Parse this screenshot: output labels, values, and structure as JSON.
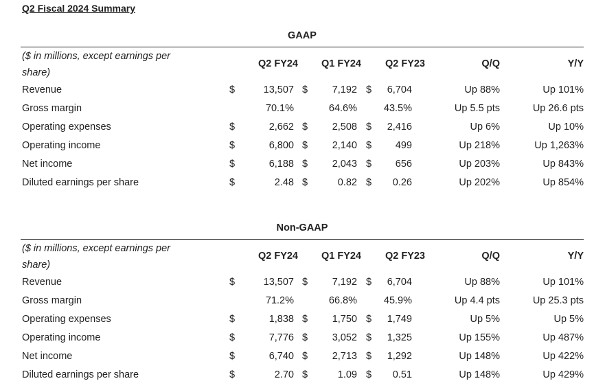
{
  "title": "Q2 Fiscal 2024 Summary",
  "sections": [
    {
      "heading": "GAAP",
      "note": "($ in millions, except earnings per share)",
      "columns": [
        "Q2 FY24",
        "Q1 FY24",
        "Q2 FY23",
        "Q/Q",
        "Y/Y"
      ],
      "rows": [
        {
          "label": "Revenue",
          "d1": "$",
          "v1": "13,507",
          "d2": "$",
          "v2": "7,192",
          "d3": "$",
          "v3": "6,704",
          "qq": "Up 88%",
          "yy": "Up 101%"
        },
        {
          "label": "Gross margin",
          "d1": "",
          "v1": "70.1%",
          "d2": "",
          "v2": "64.6%",
          "d3": "",
          "v3": "43.5%",
          "qq": "Up 5.5 pts",
          "yy": "Up 26.6 pts"
        },
        {
          "label": "Operating expenses",
          "d1": "$",
          "v1": "2,662",
          "d2": "$",
          "v2": "2,508",
          "d3": "$",
          "v3": "2,416",
          "qq": "Up 6%",
          "yy": "Up 10%"
        },
        {
          "label": "Operating income",
          "d1": "$",
          "v1": "6,800",
          "d2": "$",
          "v2": "2,140",
          "d3": "$",
          "v3": "499",
          "qq": "Up 218%",
          "yy": "Up 1,263%"
        },
        {
          "label": "Net income",
          "d1": "$",
          "v1": "6,188",
          "d2": "$",
          "v2": "2,043",
          "d3": "$",
          "v3": "656",
          "qq": "Up 203%",
          "yy": "Up 843%"
        },
        {
          "label": "Diluted earnings per share",
          "d1": "$",
          "v1": "2.48",
          "d2": "$",
          "v2": "0.82",
          "d3": "$",
          "v3": "0.26",
          "qq": "Up 202%",
          "yy": "Up 854%"
        }
      ]
    },
    {
      "heading": "Non-GAAP",
      "note": "($ in millions, except earnings per share)",
      "columns": [
        "Q2 FY24",
        "Q1 FY24",
        "Q2 FY23",
        "Q/Q",
        "Y/Y"
      ],
      "rows": [
        {
          "label": "Revenue",
          "d1": "$",
          "v1": "13,507",
          "d2": "$",
          "v2": "7,192",
          "d3": "$",
          "v3": "6,704",
          "qq": "Up 88%",
          "yy": "Up 101%"
        },
        {
          "label": "Gross margin",
          "d1": "",
          "v1": "71.2%",
          "d2": "",
          "v2": "66.8%",
          "d3": "",
          "v3": "45.9%",
          "qq": "Up 4.4 pts",
          "yy": "Up 25.3 pts"
        },
        {
          "label": "Operating expenses",
          "d1": "$",
          "v1": "1,838",
          "d2": "$",
          "v2": "1,750",
          "d3": "$",
          "v3": "1,749",
          "qq": "Up 5%",
          "yy": "Up 5%"
        },
        {
          "label": "Operating income",
          "d1": "$",
          "v1": "7,776",
          "d2": "$",
          "v2": "3,052",
          "d3": "$",
          "v3": "1,325",
          "qq": "Up 155%",
          "yy": "Up 487%"
        },
        {
          "label": "Net income",
          "d1": "$",
          "v1": "6,740",
          "d2": "$",
          "v2": "2,713",
          "d3": "$",
          "v3": "1,292",
          "qq": "Up 148%",
          "yy": "Up 422%"
        },
        {
          "label": "Diluted earnings per share",
          "d1": "$",
          "v1": "2.70",
          "d2": "$",
          "v2": "1.09",
          "d3": "$",
          "v3": "0.51",
          "qq": "Up 148%",
          "yy": "Up 429%"
        }
      ]
    }
  ]
}
